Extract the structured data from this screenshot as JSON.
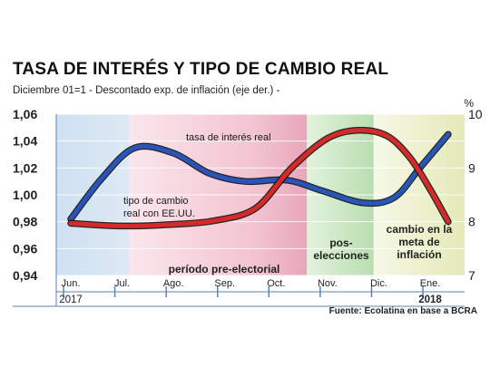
{
  "header": {
    "title": "TASA DE INTERÉS Y TIPO DE CAMBIO REAL",
    "subtitle": "Diciembre 01=1  -  Descontado exp. de inflación (eje der.) -",
    "right_axis_unit": "%",
    "source": "Fuente: Ecolatina en base a BCRA"
  },
  "chart_data": {
    "type": "line",
    "x": [
      "Jun.",
      "Jul.",
      "Ago.",
      "Sep.",
      "Oct.",
      "Nov.",
      "Dic.",
      "Ene."
    ],
    "x_year_labels": [
      {
        "label": "2017",
        "at": "Jun."
      },
      {
        "label": "2018",
        "at": "Ene."
      }
    ],
    "yleft": {
      "ticks": [
        "1,06",
        "1,04",
        "1,02",
        "1,00",
        "0,98",
        "0,96",
        "0,94"
      ],
      "lim": [
        0.94,
        1.06
      ]
    },
    "yright": {
      "ticks": [
        "10",
        "9",
        "8",
        "7"
      ],
      "lim": [
        7,
        10
      ]
    },
    "series": [
      {
        "name": "tipo de cambio real con EE.UU.",
        "axis": "left",
        "color": "#2a55b8",
        "points": [
          {
            "x": 0.0,
            "y": 0.982
          },
          {
            "x": 0.6,
            "y": 1.012
          },
          {
            "x": 1.25,
            "y": 1.035
          },
          {
            "x": 2.0,
            "y": 1.031
          },
          {
            "x": 2.7,
            "y": 1.016
          },
          {
            "x": 3.4,
            "y": 1.01
          },
          {
            "x": 4.2,
            "y": 1.011
          },
          {
            "x": 4.9,
            "y": 1.003
          },
          {
            "x": 5.7,
            "y": 0.994
          },
          {
            "x": 6.3,
            "y": 0.998
          },
          {
            "x": 6.8,
            "y": 1.02
          },
          {
            "x": 7.35,
            "y": 1.045
          }
        ]
      },
      {
        "name": "tasa de interés real",
        "axis": "right",
        "color": "#d42a2a",
        "points": [
          {
            "x": 0.0,
            "y": 7.97
          },
          {
            "x": 1.0,
            "y": 7.92
          },
          {
            "x": 2.0,
            "y": 7.95
          },
          {
            "x": 2.8,
            "y": 8.02
          },
          {
            "x": 3.6,
            "y": 8.25
          },
          {
            "x": 4.3,
            "y": 9.0
          },
          {
            "x": 5.0,
            "y": 9.55
          },
          {
            "x": 5.6,
            "y": 9.7
          },
          {
            "x": 6.15,
            "y": 9.6
          },
          {
            "x": 6.6,
            "y": 9.2
          },
          {
            "x": 7.0,
            "y": 8.6
          },
          {
            "x": 7.35,
            "y": 8.0
          }
        ]
      }
    ],
    "periods": [
      {
        "label": "período pre-electorial",
        "from": 1.0,
        "to": 4.6,
        "color": "#f4c6d2"
      },
      {
        "label": "pos-\nelecciones",
        "from": 4.6,
        "to": 5.9,
        "color": "#cbe7c4"
      },
      {
        "label": "cambio en la\nmeta de\ninflación",
        "from": 5.9,
        "to": 7.6,
        "color": "#eef2cc"
      }
    ],
    "annotations": [
      {
        "text": "tasa de interés real",
        "series": 1
      },
      {
        "text": "tipo de cambio\nreal con EE.UU.",
        "series": 0
      }
    ],
    "grid": true
  }
}
